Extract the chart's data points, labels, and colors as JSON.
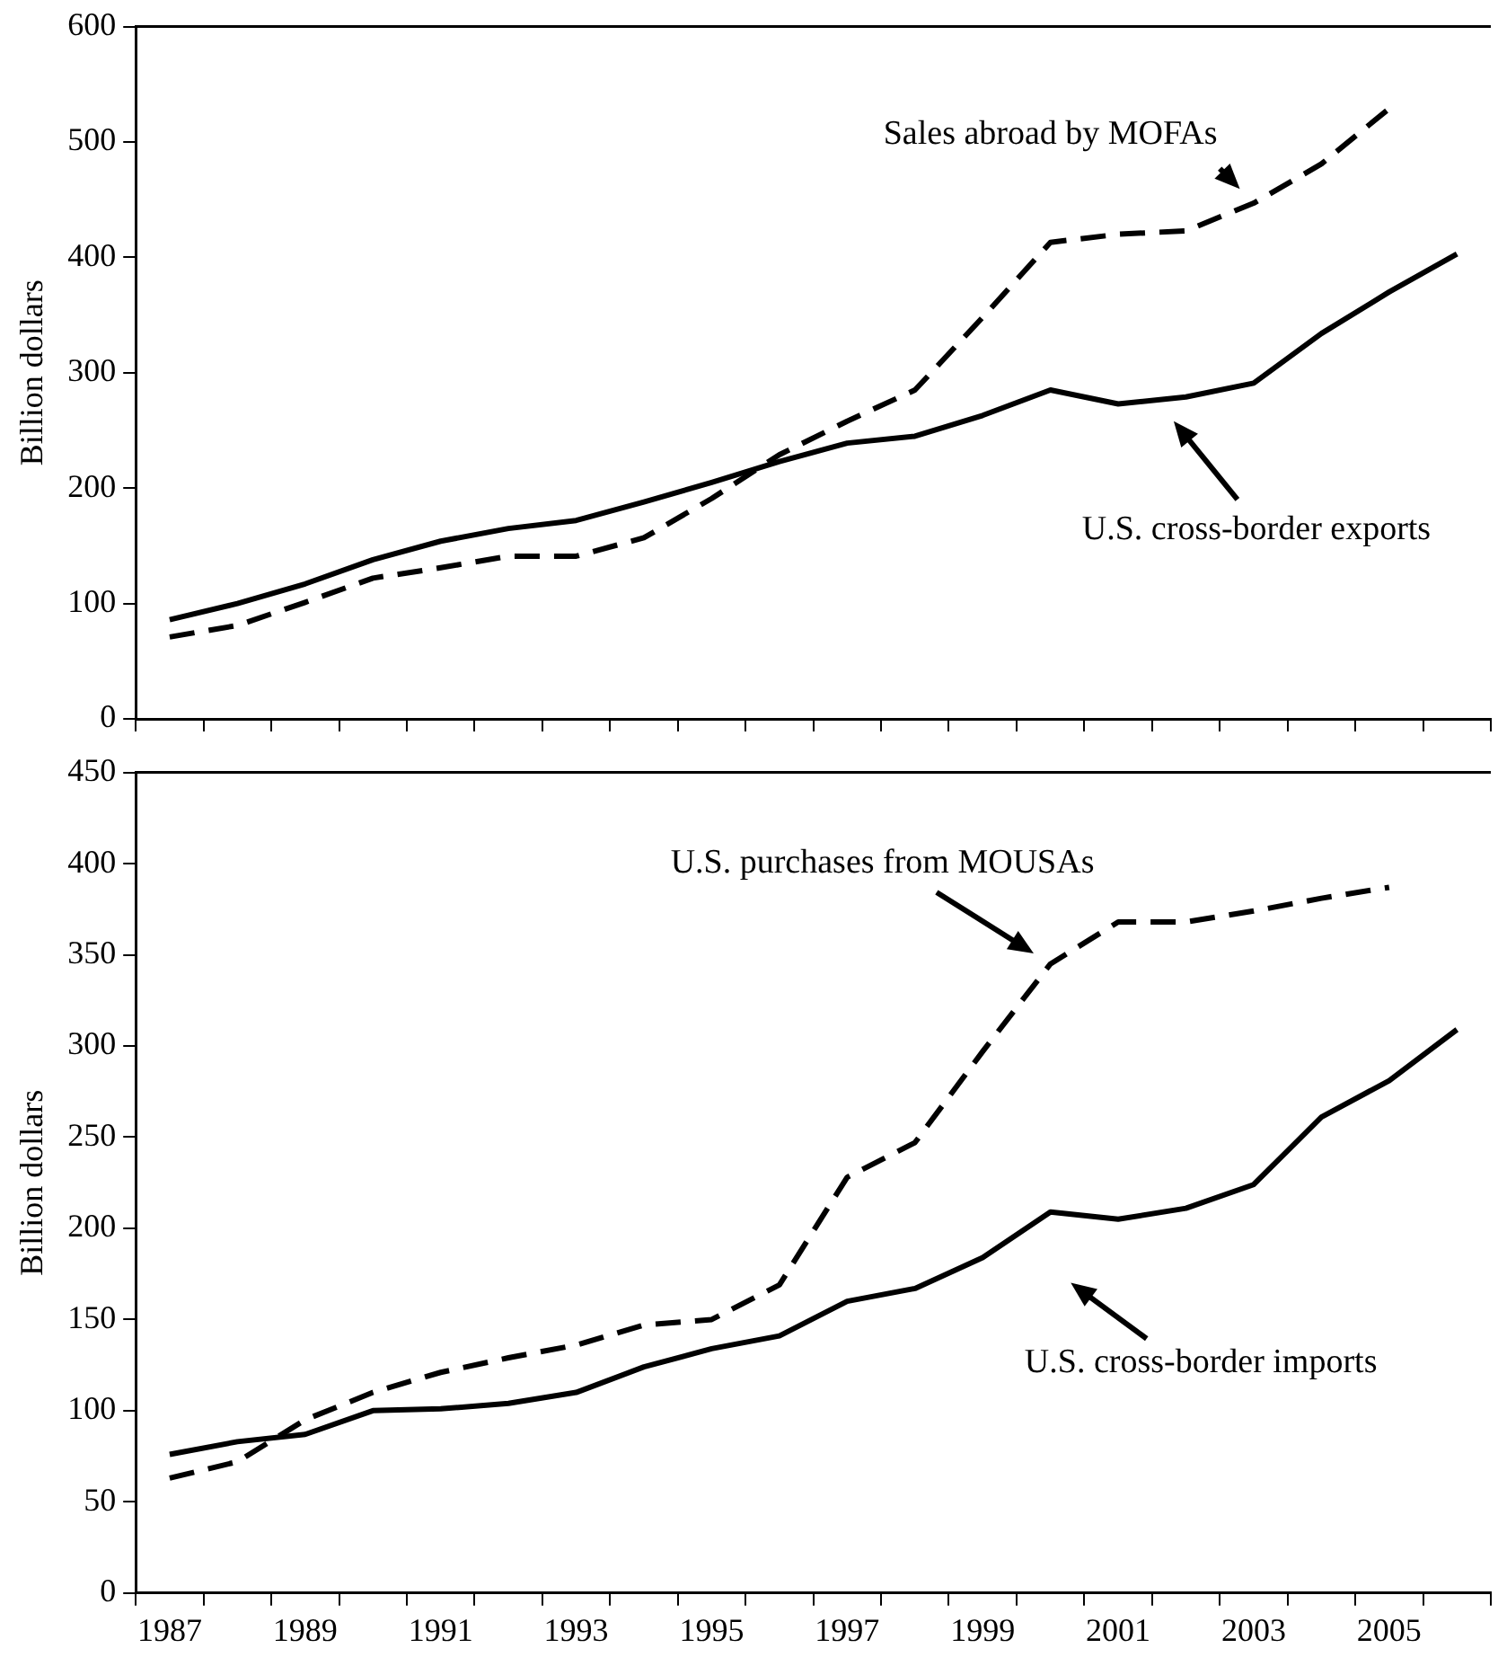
{
  "chart_data": [
    {
      "type": "line",
      "ylabel": "Billion dollars",
      "x": [
        1987,
        1988,
        1989,
        1990,
        1991,
        1992,
        1993,
        1994,
        1995,
        1996,
        1997,
        1998,
        1999,
        2000,
        2001,
        2002,
        2003,
        2004,
        2005,
        2006
      ],
      "series": [
        {
          "color": "#000000",
          "line_style": "solid",
          "values": [
            86,
            100,
            117,
            138,
            154,
            165,
            172,
            188,
            205,
            223,
            239,
            245,
            263,
            285,
            273,
            279,
            291,
            334,
            370,
            403
          ]
        },
        {
          "color": "#000000",
          "line_style": "dashed",
          "values": [
            71,
            81,
            101,
            122,
            131,
            141,
            141,
            157,
            191,
            229,
            258,
            285,
            348,
            413,
            420,
            423,
            447,
            481,
            529,
            null
          ]
        }
      ],
      "xlim": [
        1986.5,
        2006.5
      ],
      "xticks": [
        {
          "value": 1986.5,
          "label": null
        },
        1987,
        {
          "value": 1987.5,
          "label": null
        },
        {
          "value": 1988.5,
          "label": null
        },
        1989,
        {
          "value": 1989.5,
          "label": null
        },
        {
          "value": 1990.5,
          "label": null
        },
        1991,
        {
          "value": 1991.5,
          "label": null
        },
        {
          "value": 1992.5,
          "label": null
        },
        1993,
        {
          "value": 1993.5,
          "label": null
        },
        {
          "value": 1994.5,
          "label": null
        },
        1995,
        {
          "value": 1995.5,
          "label": null
        },
        {
          "value": 1996.5,
          "label": null
        },
        1997,
        {
          "value": 1997.5,
          "label": null
        },
        {
          "value": 1998.5,
          "label": null
        },
        1999,
        {
          "value": 1999.5,
          "label": null
        },
        {
          "value": 2000.5,
          "label": null
        },
        2001,
        {
          "value": 2001.5,
          "label": null
        },
        {
          "value": 2002.5,
          "label": null
        },
        2003,
        {
          "value": 2003.5,
          "label": null
        },
        {
          "value": 2004.5,
          "label": null
        },
        2005,
        {
          "value": 2005.5,
          "label": null
        },
        {
          "value": 2006.5,
          "label": null
        }
      ],
      "ylim": [
        0,
        600
      ],
      "yticks": [
        0,
        100,
        200,
        300,
        400,
        500,
        600
      ],
      "grid": false,
      "legend": false,
      "tick_labels": "y",
      "marker": "none",
      "annotations": [
        {
          "text": "Sales abroad by MOFAs",
          "x": 2003,
          "y": 447
        },
        "U.S. cross-border exports"
      ]
    },
    {
      "type": "line",
      "ylabel": "Billion dollars",
      "x": [
        1987,
        1988,
        1989,
        1990,
        1991,
        1992,
        1993,
        1994,
        1995,
        1996,
        1997,
        1998,
        1999,
        2000,
        2001,
        2002,
        2003,
        2004,
        2005,
        2006
      ],
      "series": [
        {
          "color": "#000000",
          "line_style": "solid",
          "values": [
            76,
            83,
            87,
            100,
            101,
            104,
            110,
            124,
            134,
            141,
            160,
            167,
            184,
            209,
            205,
            211,
            224,
            261,
            281,
            309
          ]
        },
        {
          "color": "#000000",
          "line_style": "dashed",
          "values": [
            63,
            72,
            95,
            110,
            121,
            129,
            136,
            147,
            150,
            169,
            228,
            247,
            297,
            345,
            368,
            368,
            374,
            381,
            387,
            null
          ]
        }
      ],
      "xlim": [
        1986.5,
        2006.5
      ],
      "xticks": [
        {
          "value": 1986.5,
          "label": null
        },
        1987,
        {
          "value": 1987.5,
          "label": null
        },
        {
          "value": 1988.5,
          "label": null
        },
        1989,
        {
          "value": 1989.5,
          "label": null
        },
        {
          "value": 1990.5,
          "label": null
        },
        1991,
        {
          "value": 1991.5,
          "label": null
        },
        {
          "value": 1992.5,
          "label": null
        },
        1993,
        {
          "value": 1993.5,
          "label": null
        },
        {
          "value": 1994.5,
          "label": null
        },
        1995,
        {
          "value": 1995.5,
          "label": null
        },
        {
          "value": 1996.5,
          "label": null
        },
        1997,
        {
          "value": 1997.5,
          "label": null
        },
        {
          "value": 1998.5,
          "label": null
        },
        1999,
        {
          "value": 1999.5,
          "label": null
        },
        {
          "value": 2000.5,
          "label": null
        },
        2001,
        {
          "value": 2001.5,
          "label": null
        },
        {
          "value": 2002.5,
          "label": null
        },
        2003,
        {
          "value": 2003.5,
          "label": null
        },
        {
          "value": 2004.5,
          "label": null
        },
        2005,
        {
          "value": 2005.5,
          "label": null
        },
        {
          "value": 2006.5,
          "label": null
        }
      ],
      "ylim": [
        0,
        450
      ],
      "yticks": [
        0,
        50,
        100,
        150,
        200,
        250,
        300,
        350,
        400,
        450
      ],
      "grid": false,
      "legend": false,
      "marker": "none",
      "annotations": [
        {
          "text": "U.S. purchases from MOUSAs",
          "x": 2000,
          "y": 345
        },
        "U.S. cross-border imports"
      ]
    }
  ]
}
